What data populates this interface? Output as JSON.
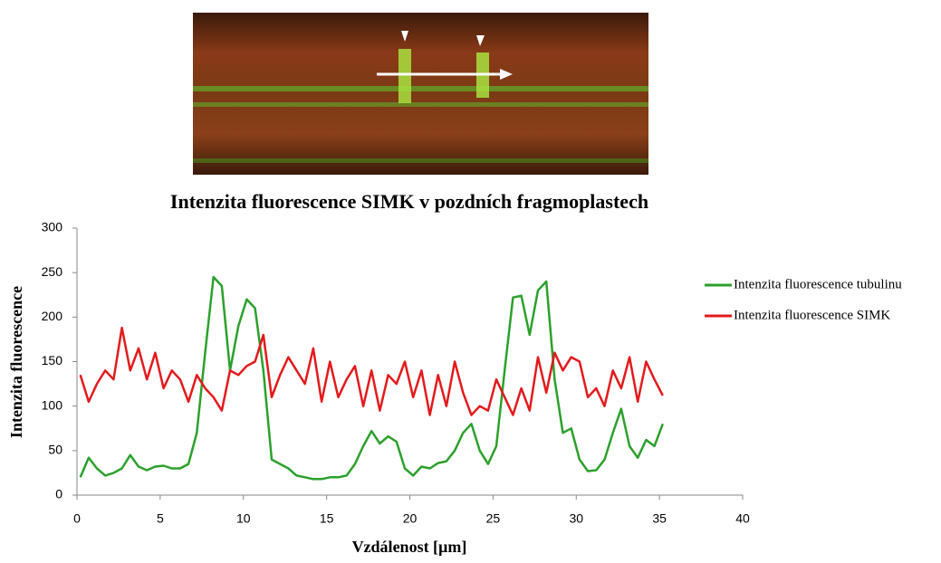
{
  "chart_data": {
    "type": "line",
    "title": "Intenzita fluorescence SIMK v pozdních fragmoplastech",
    "x_label": "Vzdálenost [µm]",
    "y_label": "Intenzita fluorescence",
    "x": [
      0.2,
      0.7,
      1.2,
      1.7,
      2.2,
      2.7,
      3.2,
      3.7,
      4.2,
      4.7,
      5.2,
      5.7,
      6.2,
      6.7,
      7.2,
      7.7,
      8.2,
      8.7,
      9.2,
      9.7,
      10.2,
      10.7,
      11.2,
      11.7,
      12.2,
      12.7,
      13.2,
      13.7,
      14.2,
      14.7,
      15.2,
      15.7,
      16.2,
      16.7,
      17.2,
      17.7,
      18.2,
      18.7,
      19.2,
      19.7,
      20.2,
      20.7,
      21.2,
      21.7,
      22.2,
      22.7,
      23.2,
      23.7,
      24.2,
      24.7,
      25.2,
      25.7,
      26.2,
      26.7,
      27.2,
      27.7,
      28.2,
      28.7,
      29.2,
      29.7,
      30.2,
      30.7,
      31.2,
      31.7,
      32.2,
      32.7,
      33.2,
      33.7,
      34.2,
      34.7,
      35.2
    ],
    "series": [
      {
        "name": "Intenzita fluorescence tubulinu",
        "color": "#2ca02c",
        "values": [
          20,
          42,
          30,
          22,
          25,
          30,
          45,
          32,
          28,
          32,
          33,
          30,
          30,
          35,
          70,
          160,
          245,
          235,
          140,
          190,
          220,
          210,
          140,
          40,
          35,
          30,
          22,
          20,
          18,
          18,
          20,
          20,
          22,
          35,
          55,
          72,
          58,
          66,
          60,
          30,
          22,
          32,
          30,
          36,
          38,
          50,
          70,
          80,
          50,
          35,
          55,
          140,
          222,
          224,
          180,
          230,
          240,
          130,
          70,
          75,
          40,
          27,
          28,
          40,
          70,
          97,
          55,
          42,
          62,
          55,
          80
        ]
      },
      {
        "name": "Intenzita fluorescence SIMK",
        "color": "#e31a1c",
        "values": [
          135,
          105,
          125,
          140,
          130,
          188,
          140,
          165,
          130,
          160,
          120,
          140,
          130,
          105,
          135,
          120,
          110,
          95,
          140,
          135,
          145,
          150,
          180,
          110,
          135,
          155,
          140,
          125,
          165,
          105,
          150,
          110,
          130,
          145,
          100,
          140,
          95,
          135,
          125,
          150,
          110,
          140,
          90,
          135,
          100,
          150,
          115,
          90,
          100,
          95,
          130,
          110,
          90,
          120,
          95,
          155,
          115,
          160,
          140,
          155,
          150,
          110,
          120,
          100,
          140,
          120,
          155,
          105,
          150,
          130,
          112
        ]
      }
    ],
    "xlim": [
      0,
      40
    ],
    "xticks": [
      0,
      5,
      10,
      15,
      20,
      25,
      30,
      35,
      40
    ],
    "ylim": [
      0,
      300
    ],
    "yticks": [
      0,
      50,
      100,
      150,
      200,
      250,
      300
    ],
    "grid": false,
    "legend": "right"
  }
}
